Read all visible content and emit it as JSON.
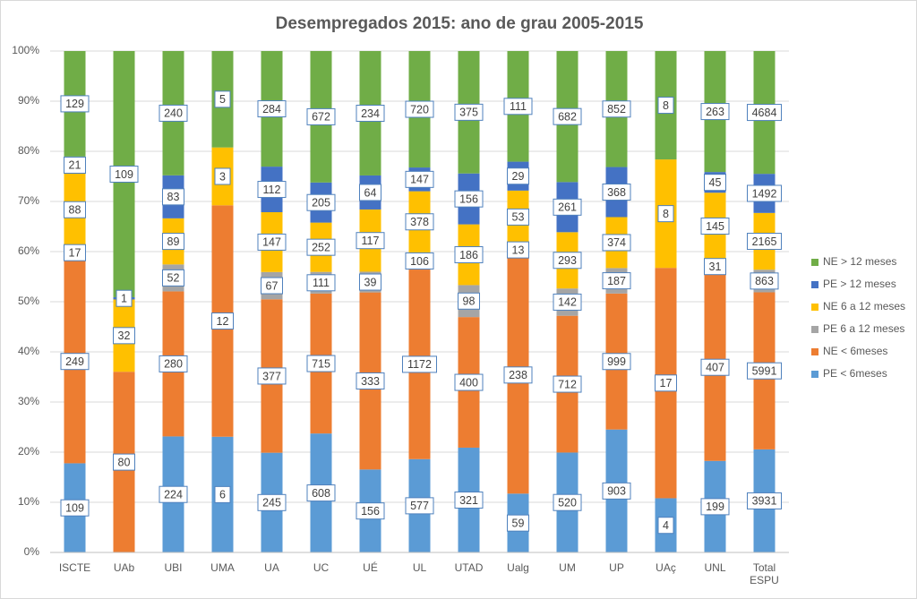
{
  "chart_data": {
    "type": "stacked_percent_bar",
    "title": "Desempregados 2015: ano de grau 2005-2015",
    "categories": [
      "ISCTE",
      "UAb",
      "UBI",
      "UMA",
      "UA",
      "UC",
      "UÉ",
      "UL",
      "UTAD",
      "Ualg",
      "UM",
      "UP",
      "UAç",
      "UNL",
      "Total ESPU"
    ],
    "series": [
      {
        "name": "PE < 6meses",
        "color": "#5b9bd5",
        "values": [
          109,
          null,
          224,
          6,
          245,
          608,
          156,
          577,
          321,
          59,
          520,
          903,
          4,
          199,
          3931
        ]
      },
      {
        "name": "NE < 6meses",
        "color": "#ed7d31",
        "values": [
          249,
          80,
          280,
          12,
          377,
          715,
          333,
          1172,
          400,
          238,
          712,
          999,
          17,
          407,
          5991
        ]
      },
      {
        "name": "PE 6 a 12 meses",
        "color": "#a5a5a5",
        "values": [
          17,
          null,
          52,
          null,
          67,
          111,
          39,
          106,
          98,
          13,
          142,
          187,
          null,
          31,
          863
        ]
      },
      {
        "name": "NE 6 a 12 meses",
        "color": "#ffc000",
        "values": [
          88,
          32,
          89,
          3,
          147,
          252,
          117,
          378,
          186,
          53,
          293,
          374,
          8,
          145,
          2165
        ]
      },
      {
        "name": "PE > 12 meses",
        "color": "#4472c4",
        "values": [
          21,
          1,
          83,
          null,
          112,
          205,
          64,
          147,
          156,
          29,
          261,
          368,
          null,
          45,
          1492
        ]
      },
      {
        "name": "NE > 12 meses",
        "color": "#70ad47",
        "values": [
          129,
          109,
          240,
          5,
          284,
          672,
          234,
          720,
          375,
          111,
          682,
          852,
          8,
          263,
          4684
        ]
      }
    ],
    "ylim": [
      0,
      100
    ],
    "yticks": [
      {
        "value": 0,
        "label": "0%"
      },
      {
        "value": 10,
        "label": "10%"
      },
      {
        "value": 20,
        "label": "20%"
      },
      {
        "value": 30,
        "label": "30%"
      },
      {
        "value": 40,
        "label": "40%"
      },
      {
        "value": 50,
        "label": "50%"
      },
      {
        "value": 60,
        "label": "60%"
      },
      {
        "value": 70,
        "label": "70%"
      },
      {
        "value": 80,
        "label": "80%"
      },
      {
        "value": 90,
        "label": "90%"
      },
      {
        "value": 100,
        "label": "100%"
      }
    ],
    "grid": true,
    "legend": "right"
  }
}
